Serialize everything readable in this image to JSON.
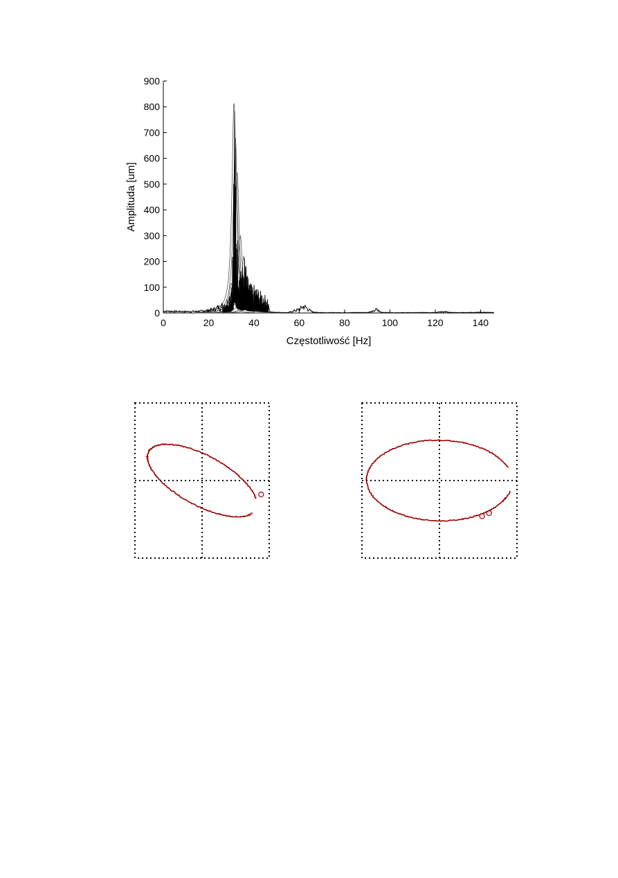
{
  "chart_data": [
    {
      "type": "line",
      "xlabel": "Częstotliwość [Hz]",
      "ylabel": "Amplituda [um]",
      "xlim": [
        0,
        146
      ],
      "ylim": [
        0,
        900
      ],
      "xticks": [
        0,
        20,
        40,
        60,
        80,
        100,
        120,
        140
      ],
      "yticks": [
        0,
        100,
        200,
        300,
        400,
        500,
        600,
        700,
        800,
        900
      ],
      "grid": false,
      "line_color": "#000000",
      "envelope_x": [
        0,
        10,
        16,
        20,
        22,
        24,
        26,
        28,
        29,
        30,
        30.8,
        31.2,
        31.6,
        32,
        32.6,
        33.2,
        34,
        35,
        36,
        37,
        38,
        39,
        40,
        41,
        42,
        43,
        44,
        45,
        46,
        47,
        50,
        55,
        60,
        61,
        62,
        63,
        64,
        65,
        66,
        68,
        72,
        80,
        90,
        93,
        94,
        95,
        96,
        97,
        100,
        110,
        120,
        124,
        125,
        126,
        130,
        140,
        146
      ],
      "envelope_y": [
        10,
        8,
        10,
        15,
        20,
        30,
        40,
        55,
        80,
        120,
        300,
        815,
        810,
        550,
        300,
        300,
        210,
        190,
        230,
        150,
        130,
        110,
        110,
        105,
        95,
        85,
        80,
        70,
        65,
        5,
        3,
        2,
        20,
        30,
        35,
        30,
        20,
        12,
        6,
        3,
        2,
        2,
        3,
        10,
        20,
        12,
        5,
        3,
        2,
        2,
        3,
        8,
        6,
        3,
        2,
        4,
        2
      ],
      "smooth_resonance_curves": [
        {
          "peak_hz": 31.2,
          "peak_value": 815
        },
        {
          "peak_hz": 31.8,
          "peak_value": 680
        },
        {
          "peak_hz": 32.6,
          "peak_value": 545
        },
        {
          "peak_hz": 34.0,
          "peak_value": 300
        },
        {
          "peak_hz": 35.5,
          "peak_value": 220
        },
        {
          "peak_hz": 37.0,
          "peak_value": 140
        },
        {
          "peak_hz": 38.5,
          "peak_value": 105
        },
        {
          "peak_hz": 30.0,
          "peak_value": 115
        }
      ]
    },
    {
      "type": "scatter",
      "description_shape": "orbit",
      "grid": true,
      "grid_style": "dotted",
      "grid_divisions": 2,
      "line_color": "#990000",
      "xlim": [
        -1,
        1
      ],
      "ylim": [
        -1,
        1
      ],
      "orbit": {
        "center": [
          0,
          0
        ],
        "semi_major": 0.88,
        "semi_minor": 0.33,
        "tilt_deg": 24
      },
      "markers": [
        [
          0.88,
          -0.18
        ]
      ]
    },
    {
      "type": "scatter",
      "description_shape": "orbit",
      "grid": true,
      "grid_style": "dotted",
      "grid_divisions": 2,
      "line_color": "#990000",
      "xlim": [
        -1,
        1
      ],
      "ylim": [
        -1,
        1
      ],
      "orbit": {
        "center": [
          0,
          0
        ],
        "semi_major": 0.94,
        "semi_minor": 0.52,
        "tilt_deg": 1
      },
      "markers": [
        [
          0.55,
          -0.46
        ],
        [
          0.64,
          -0.42
        ]
      ]
    }
  ]
}
